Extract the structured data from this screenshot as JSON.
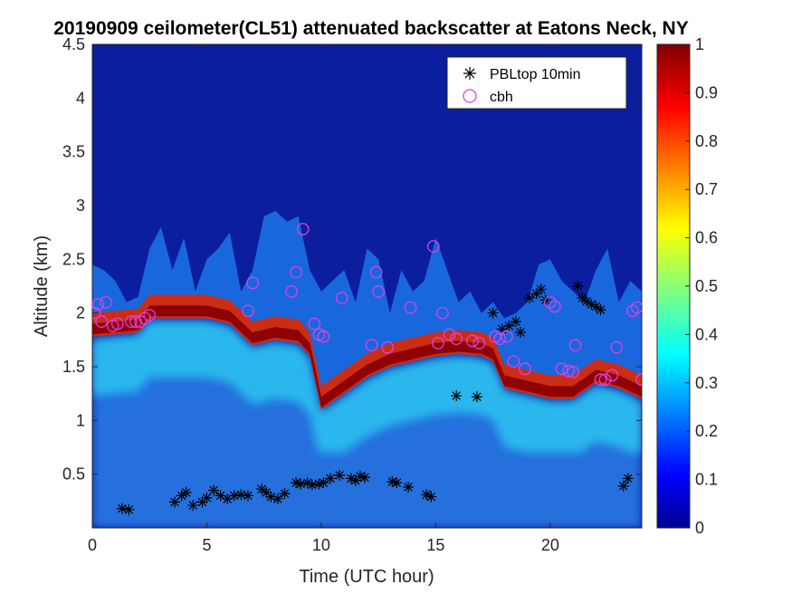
{
  "chart_data": {
    "type": "heatmap",
    "title": "20190909 ceilometer(CL51) attenuated backscatter at Eatons Neck, NY",
    "xlabel": "Time (UTC hour)",
    "ylabel": "Altitude (km)",
    "xlim": [
      0,
      24
    ],
    "ylim": [
      0,
      4.5
    ],
    "xticks": [
      0,
      5,
      10,
      15,
      20
    ],
    "yticks": [
      0.5,
      1,
      1.5,
      2,
      2.5,
      3,
      3.5,
      4,
      4.5
    ],
    "xtick_labels": [
      "0",
      "5",
      "10",
      "15",
      "20"
    ],
    "ytick_labels": [
      "0.5",
      "1",
      "1.5",
      "2",
      "2.5",
      "3",
      "3.5",
      "4",
      "4.5"
    ],
    "colorbar": {
      "range": [
        0,
        1
      ],
      "ticks": [
        0,
        0.1,
        0.2,
        0.3,
        0.4,
        0.5,
        0.6,
        0.7,
        0.8,
        0.9,
        1
      ],
      "tick_labels": [
        "0",
        "0.1",
        "0.2",
        "0.3",
        "0.4",
        "0.5",
        "0.6",
        "0.7",
        "0.8",
        "0.9",
        "1"
      ],
      "colormap": "jet"
    },
    "legend": {
      "position": "top-right",
      "entries": [
        {
          "label": "PBLtop 10min",
          "marker": "asterisk",
          "color": "#000000"
        },
        {
          "label": "cbh",
          "marker": "circle",
          "color": "#e040e0"
        }
      ]
    },
    "mixing_layer_top_km": [
      [
        0,
        2.45
      ],
      [
        0.5,
        2.4
      ],
      [
        1,
        2.3
      ],
      [
        1.5,
        2.1
      ],
      [
        2,
        2.15
      ],
      [
        2.5,
        2.6
      ],
      [
        3,
        2.8
      ],
      [
        3.5,
        2.4
      ],
      [
        4,
        2.7
      ],
      [
        4.5,
        2.2
      ],
      [
        5,
        2.5
      ],
      [
        5.5,
        2.6
      ],
      [
        6,
        2.75
      ],
      [
        6.5,
        2.2
      ],
      [
        7,
        2.4
      ],
      [
        7.5,
        2.9
      ],
      [
        8,
        2.95
      ],
      [
        8.5,
        2.85
      ],
      [
        9,
        2.9
      ],
      [
        9.5,
        2.4
      ],
      [
        10,
        2.2
      ],
      [
        10.5,
        2.3
      ],
      [
        11,
        2.4
      ],
      [
        11.5,
        2.1
      ],
      [
        12,
        2.6
      ],
      [
        12.5,
        2.5
      ],
      [
        13,
        2.0
      ],
      [
        13.5,
        2.4
      ],
      [
        14,
        2.2
      ],
      [
        14.5,
        2.3
      ],
      [
        15,
        2.7
      ],
      [
        15.5,
        2.4
      ],
      [
        16,
        2.1
      ],
      [
        16.5,
        2.2
      ],
      [
        17,
        2.0
      ],
      [
        17.5,
        2.1
      ],
      [
        18,
        1.95
      ],
      [
        18.5,
        2.0
      ],
      [
        19,
        2.1
      ],
      [
        19.5,
        2.45
      ],
      [
        20,
        2.5
      ],
      [
        20.5,
        2.3
      ],
      [
        21,
        2.2
      ],
      [
        21.5,
        2.1
      ],
      [
        22,
        2.4
      ],
      [
        22.5,
        2.6
      ],
      [
        23,
        2.1
      ],
      [
        23.5,
        2.3
      ],
      [
        24,
        2.2
      ]
    ],
    "aerosol_layer_bottom_km": [
      [
        0,
        1.78
      ],
      [
        2,
        1.82
      ],
      [
        2.5,
        1.95
      ],
      [
        3,
        1.95
      ],
      [
        4,
        1.95
      ],
      [
        5,
        1.95
      ],
      [
        6,
        1.9
      ],
      [
        7,
        1.7
      ],
      [
        8,
        1.75
      ],
      [
        9,
        1.72
      ],
      [
        9.5,
        1.6
      ],
      [
        10,
        1.1
      ],
      [
        11,
        1.25
      ],
      [
        12,
        1.4
      ],
      [
        13,
        1.5
      ],
      [
        14,
        1.55
      ],
      [
        15,
        1.6
      ],
      [
        16,
        1.62
      ],
      [
        17,
        1.6
      ],
      [
        17.5,
        1.55
      ],
      [
        18,
        1.3
      ],
      [
        19,
        1.25
      ],
      [
        20,
        1.2
      ],
      [
        21,
        1.2
      ],
      [
        22,
        1.35
      ],
      [
        23,
        1.3
      ],
      [
        24,
        1.2
      ]
    ],
    "series": [
      {
        "name": "PBLtop 10min",
        "points": [
          [
            1.3,
            0.18
          ],
          [
            1.6,
            0.17
          ],
          [
            3.6,
            0.24
          ],
          [
            3.9,
            0.3
          ],
          [
            4.1,
            0.33
          ],
          [
            4.4,
            0.21
          ],
          [
            4.8,
            0.24
          ],
          [
            5.0,
            0.28
          ],
          [
            5.3,
            0.35
          ],
          [
            5.6,
            0.3
          ],
          [
            5.9,
            0.27
          ],
          [
            6.2,
            0.3
          ],
          [
            6.5,
            0.31
          ],
          [
            6.8,
            0.3
          ],
          [
            7.4,
            0.36
          ],
          [
            7.6,
            0.33
          ],
          [
            7.8,
            0.29
          ],
          [
            8.1,
            0.27
          ],
          [
            8.4,
            0.32
          ],
          [
            8.9,
            0.42
          ],
          [
            9.1,
            0.41
          ],
          [
            9.4,
            0.42
          ],
          [
            9.6,
            0.4
          ],
          [
            9.9,
            0.41
          ],
          [
            10.1,
            0.42
          ],
          [
            10.4,
            0.46
          ],
          [
            10.8,
            0.49
          ],
          [
            11.3,
            0.46
          ],
          [
            11.5,
            0.44
          ],
          [
            11.7,
            0.48
          ],
          [
            11.9,
            0.47
          ],
          [
            13.1,
            0.43
          ],
          [
            13.3,
            0.42
          ],
          [
            13.8,
            0.38
          ],
          [
            14.6,
            0.31
          ],
          [
            14.8,
            0.29
          ],
          [
            15.9,
            1.23
          ],
          [
            16.8,
            1.22
          ],
          [
            17.5,
            2.0
          ],
          [
            17.9,
            1.85
          ],
          [
            18.2,
            1.88
          ],
          [
            18.5,
            1.92
          ],
          [
            18.7,
            1.82
          ],
          [
            19.1,
            2.14
          ],
          [
            19.4,
            2.18
          ],
          [
            19.6,
            2.22
          ],
          [
            19.8,
            2.12
          ],
          [
            21.2,
            2.25
          ],
          [
            21.4,
            2.14
          ],
          [
            21.6,
            2.11
          ],
          [
            21.8,
            2.08
          ],
          [
            22.0,
            2.06
          ],
          [
            22.2,
            2.03
          ],
          [
            23.2,
            0.39
          ],
          [
            23.4,
            0.46
          ]
        ]
      },
      {
        "name": "cbh",
        "points": [
          [
            0.1,
            2.0
          ],
          [
            0.25,
            2.08
          ],
          [
            0.4,
            1.92
          ],
          [
            0.6,
            2.1
          ],
          [
            0.9,
            1.88
          ],
          [
            1.1,
            1.9
          ],
          [
            1.7,
            1.92
          ],
          [
            1.9,
            1.92
          ],
          [
            2.1,
            1.92
          ],
          [
            2.3,
            1.95
          ],
          [
            2.5,
            1.98
          ],
          [
            6.8,
            2.02
          ],
          [
            7.0,
            2.28
          ],
          [
            8.7,
            2.2
          ],
          [
            8.9,
            2.38
          ],
          [
            9.2,
            2.78
          ],
          [
            9.7,
            1.9
          ],
          [
            9.9,
            1.8
          ],
          [
            10.1,
            1.78
          ],
          [
            10.9,
            2.14
          ],
          [
            12.2,
            1.7
          ],
          [
            12.4,
            2.38
          ],
          [
            12.5,
            2.2
          ],
          [
            12.9,
            1.68
          ],
          [
            13.9,
            2.05
          ],
          [
            14.9,
            2.62
          ],
          [
            15.1,
            1.72
          ],
          [
            15.3,
            2.0
          ],
          [
            15.6,
            1.8
          ],
          [
            15.9,
            1.76
          ],
          [
            16.6,
            1.74
          ],
          [
            16.9,
            1.72
          ],
          [
            17.6,
            1.78
          ],
          [
            17.8,
            1.76
          ],
          [
            18.1,
            1.78
          ],
          [
            18.4,
            1.55
          ],
          [
            18.9,
            1.48
          ],
          [
            20.0,
            2.1
          ],
          [
            20.2,
            2.06
          ],
          [
            20.5,
            1.48
          ],
          [
            20.8,
            1.46
          ],
          [
            21.0,
            1.45
          ],
          [
            21.1,
            1.7
          ],
          [
            22.2,
            1.38
          ],
          [
            22.4,
            1.38
          ],
          [
            22.7,
            1.42
          ],
          [
            22.9,
            1.68
          ],
          [
            23.6,
            2.02
          ],
          [
            23.8,
            2.05
          ],
          [
            24.0,
            1.38
          ]
        ]
      }
    ]
  }
}
